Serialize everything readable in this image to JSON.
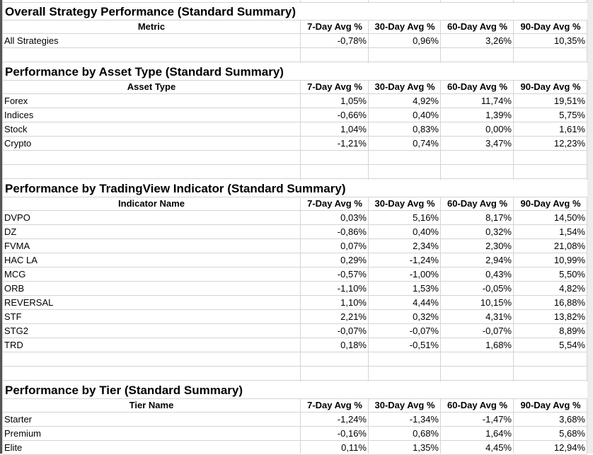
{
  "headers": [
    "7-Day Avg %",
    "30-Day Avg %",
    "60-Day Avg %",
    "90-Day Avg %"
  ],
  "sections": [
    {
      "title": "Overall Strategy Performance (Standard Summary)",
      "label_header": "Metric",
      "rows": [
        {
          "name": "All Strategies",
          "values": [
            "-0,78%",
            "0,96%",
            "3,26%",
            "10,35%"
          ]
        }
      ]
    },
    {
      "title": "Performance by Asset Type (Standard Summary)",
      "label_header": "Asset Type",
      "rows": [
        {
          "name": "Forex",
          "values": [
            "1,05%",
            "4,92%",
            "11,74%",
            "19,51%"
          ]
        },
        {
          "name": "Indices",
          "values": [
            "-0,66%",
            "0,40%",
            "1,39%",
            "5,75%"
          ]
        },
        {
          "name": "Stock",
          "values": [
            "1,04%",
            "0,83%",
            "0,00%",
            "1,61%"
          ]
        },
        {
          "name": "Crypto",
          "values": [
            "-1,21%",
            "0,74%",
            "3,47%",
            "12,23%"
          ]
        }
      ]
    },
    {
      "title": "Performance by TradingView Indicator (Standard Summary)",
      "label_header": "Indicator Name",
      "rows": [
        {
          "name": "DVPO",
          "values": [
            "0,03%",
            "5,16%",
            "8,17%",
            "14,50%"
          ]
        },
        {
          "name": "DZ",
          "values": [
            "-0,86%",
            "0,40%",
            "0,32%",
            "1,54%"
          ]
        },
        {
          "name": "FVMA",
          "values": [
            "0,07%",
            "2,34%",
            "2,30%",
            "21,08%"
          ]
        },
        {
          "name": "HAC LA",
          "values": [
            "0,29%",
            "-1,24%",
            "2,94%",
            "10,99%"
          ]
        },
        {
          "name": "MCG",
          "values": [
            "-0,57%",
            "-1,00%",
            "0,43%",
            "5,50%"
          ]
        },
        {
          "name": "ORB",
          "values": [
            "-1,10%",
            "1,53%",
            "-0,05%",
            "4,82%"
          ]
        },
        {
          "name": "REVERSAL",
          "values": [
            "1,10%",
            "4,44%",
            "10,15%",
            "16,88%"
          ]
        },
        {
          "name": "STF",
          "values": [
            "2,21%",
            "0,32%",
            "4,31%",
            "13,82%"
          ]
        },
        {
          "name": "STG2",
          "values": [
            "-0,07%",
            "-0,07%",
            "-0,07%",
            "8,89%"
          ]
        },
        {
          "name": "TRD",
          "values": [
            "0,18%",
            "-0,51%",
            "1,68%",
            "5,54%"
          ]
        }
      ]
    },
    {
      "title": "Performance by Tier (Standard Summary)",
      "label_header": "Tier Name",
      "rows": [
        {
          "name": "Starter",
          "values": [
            "-1,24%",
            "-1,34%",
            "-1,47%",
            "3,68%"
          ]
        },
        {
          "name": "Premium",
          "values": [
            "-0,16%",
            "0,68%",
            "1,64%",
            "5,68%"
          ]
        },
        {
          "name": "Elite",
          "values": [
            "0,11%",
            "1,35%",
            "4,45%",
            "12,94%"
          ]
        }
      ]
    }
  ]
}
